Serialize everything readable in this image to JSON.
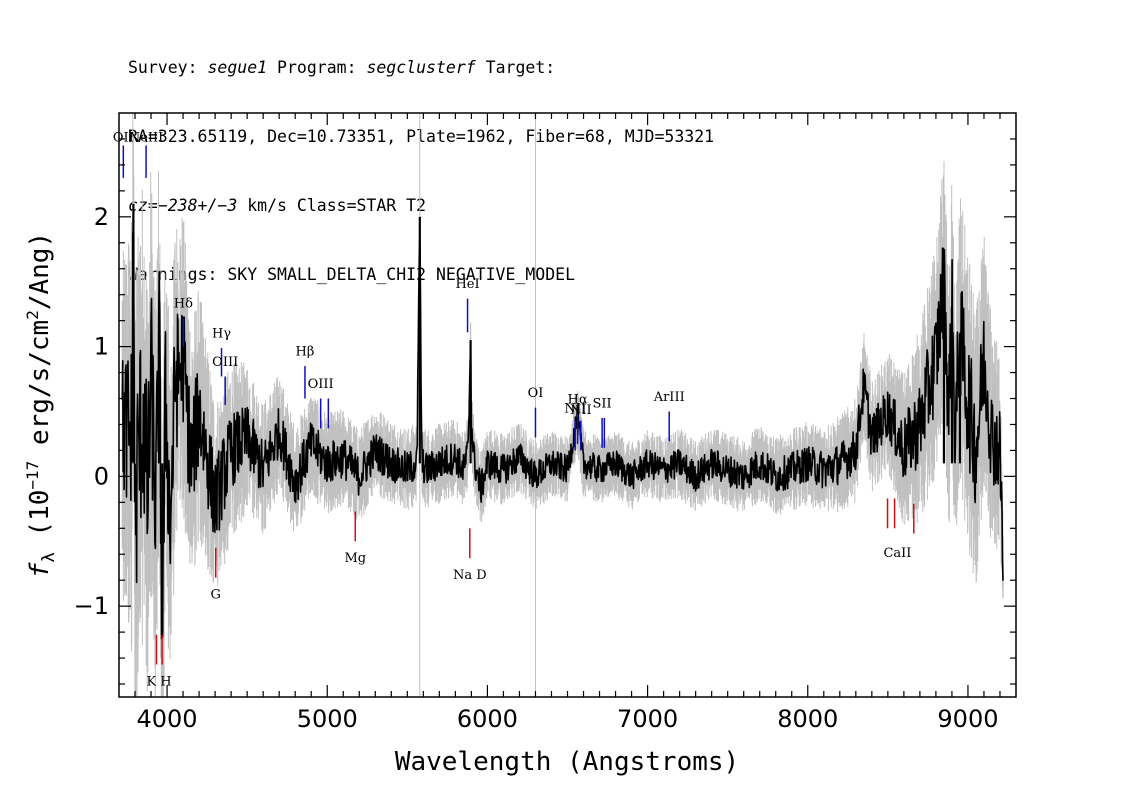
{
  "header": {
    "survey_prefix": "Survey: ",
    "survey": "segue1",
    "program_prefix": " Program: ",
    "program": "segclusterf",
    "target_suffix": " Target:",
    "line2": "RA=323.65119, Dec=10.73351, Plate=1962, Fiber=68, MJD=53321",
    "cz_prefix": "cz=",
    "cz_value": "−238+/−3",
    "cz_suffix": " km/s Class=STAR T2",
    "line4": "Warnings: SKY SMALL_DELTA_CHI2 NEGATIVE_MODEL"
  },
  "chart_data": {
    "type": "line",
    "xlabel": "Wavelength (Angstroms)",
    "ylabel": "f_λ (10^-17 erg/s/cm^2/Ang)",
    "ylabel_parts": {
      "prefix": "f",
      "sub": "λ",
      "open": " (10",
      "exp1": "−17",
      "mid": " erg/s/cm",
      "exp2": "2",
      "end": "/Ang)"
    },
    "xlim": [
      3700,
      9300
    ],
    "ylim": [
      -1.7,
      2.8
    ],
    "x_ticks": [
      4000,
      5000,
      6000,
      7000,
      8000,
      9000
    ],
    "x_tick_labels": [
      "4000",
      "5000",
      "6000",
      "7000",
      "8000",
      "9000"
    ],
    "y_ticks": [
      -1,
      0,
      1,
      2
    ],
    "y_tick_labels": [
      "−1",
      "0",
      "1",
      "2"
    ],
    "series": [
      {
        "role": "flux",
        "color": "#000000",
        "x": [
          3720,
          3780,
          3790,
          3800,
          3820,
          3850,
          3880,
          3900,
          3930,
          3950,
          3970,
          3990,
          4020,
          4050,
          4100,
          4150,
          4200,
          4300,
          4400,
          4500,
          4600,
          4700,
          4800,
          4900,
          5000,
          5100,
          5200,
          5300,
          5400,
          5500,
          5560,
          5578,
          5590,
          5620,
          5700,
          5800,
          5850,
          5880,
          5895,
          5900,
          5920,
          5960,
          6000,
          6100,
          6200,
          6300,
          6400,
          6500,
          6560,
          6600,
          6700,
          6800,
          6900,
          7000,
          7100,
          7200,
          7300,
          7400,
          7500,
          7600,
          7700,
          7800,
          7900,
          8000,
          8100,
          8200,
          8300,
          8350,
          8400,
          8500,
          8600,
          8700,
          8800,
          8850,
          8880,
          8900,
          8920,
          8950,
          9000,
          9050,
          9100,
          9150,
          9200,
          9220
        ],
        "y": [
          0.4,
          0.3,
          2.1,
          -0.5,
          0.2,
          0.5,
          -0.2,
          0.8,
          -0.3,
          1.1,
          -1.2,
          0.6,
          -0.4,
          0.7,
          0.9,
          0.1,
          0.5,
          -0.2,
          0.2,
          0.3,
          0.05,
          0.35,
          -0.05,
          0.25,
          0.1,
          0.15,
          0.0,
          0.2,
          0.1,
          0.05,
          0.1,
          2.0,
          0.1,
          0.05,
          0.1,
          0.15,
          0.05,
          0.2,
          1.05,
          0.4,
          0.1,
          -0.1,
          0.1,
          0.05,
          0.15,
          0.0,
          0.1,
          0.05,
          0.45,
          0.1,
          0.05,
          0.1,
          0.0,
          0.1,
          0.05,
          0.1,
          0.0,
          0.1,
          0.05,
          0.0,
          0.1,
          0.0,
          0.05,
          0.1,
          0.05,
          0.1,
          0.2,
          0.7,
          0.3,
          0.5,
          0.2,
          0.4,
          0.9,
          1.5,
          0.5,
          1.3,
          0.3,
          1.1,
          0.6,
          0.2,
          0.9,
          0.3,
          0.2,
          -0.7
        ]
      },
      {
        "role": "error",
        "color": "#c0c0c0",
        "x": [
          3720,
          3800,
          3900,
          4000,
          4100,
          4200,
          4300,
          4500,
          4700,
          5000,
          5500,
          6000,
          6500,
          7000,
          7500,
          8000,
          8500,
          8800,
          9000,
          9200
        ],
        "y": [
          1.0,
          1.5,
          1.3,
          1.1,
          0.9,
          0.75,
          0.6,
          0.45,
          0.35,
          0.3,
          0.25,
          0.22,
          0.2,
          0.2,
          0.22,
          0.25,
          0.35,
          0.7,
          0.9,
          0.6
        ]
      }
    ],
    "emission_lines": [
      {
        "label": "OII",
        "wave": 3727,
        "y0": 2.3,
        "y1": 2.55
      },
      {
        "label": "NeIII",
        "wave": 3869,
        "y0": 2.3,
        "y1": 2.55
      },
      {
        "label": "Hδ",
        "wave": 4102,
        "y0": 1.0,
        "y1": 1.22
      },
      {
        "label": "Hγ",
        "wave": 4340,
        "y0": 0.77,
        "y1": 0.99
      },
      {
        "label": "OIII",
        "wave": 4363,
        "y0": 0.55,
        "y1": 0.77
      },
      {
        "label": "Hβ",
        "wave": 4861,
        "y0": 0.6,
        "y1": 0.85
      },
      {
        "label": "OIII",
        "wave": 4959,
        "y0": 0.37,
        "y1": 0.6
      },
      {
        "label": "OIII",
        "wave": 5007,
        "y0": 0.37,
        "y1": 0.6
      },
      {
        "label": "HeI",
        "wave": 5876,
        "y0": 1.11,
        "y1": 1.37
      },
      {
        "label": "OI",
        "wave": 6300,
        "y0": 0.3,
        "y1": 0.53
      },
      {
        "label": "NII",
        "wave": 6548,
        "y0": 0.2,
        "y1": 0.43
      },
      {
        "label": "Hα",
        "wave": 6563,
        "y0": 0.25,
        "y1": 0.48
      },
      {
        "label": "NII",
        "wave": 6583,
        "y0": 0.2,
        "y1": 0.43
      },
      {
        "label": "SII",
        "wave": 6716,
        "y0": 0.22,
        "y1": 0.45
      },
      {
        "label": "SII",
        "wave": 6730,
        "y0": 0.22,
        "y1": 0.45
      },
      {
        "label": "ArIII",
        "wave": 7135,
        "y0": 0.27,
        "y1": 0.5
      }
    ],
    "emission_label_positions": [
      {
        "label": "OII",
        "wave": 3727,
        "y": 2.55
      },
      {
        "label": "NeIII",
        "wave": 3869,
        "y": 2.55
      },
      {
        "label": "Hδ",
        "wave": 4102,
        "y": 1.27
      },
      {
        "label": "Hγ",
        "wave": 4340,
        "y": 1.04
      },
      {
        "label": "OIII",
        "wave": 4363,
        "y": 0.82
      },
      {
        "label": "Hβ",
        "wave": 4861,
        "y": 0.9
      },
      {
        "label": "OIII",
        "wave": 4959,
        "y": 0.65
      },
      {
        "label": "HeI",
        "wave": 5876,
        "y": 1.42
      },
      {
        "label": "OI",
        "wave": 6300,
        "y": 0.58
      },
      {
        "label": "NII",
        "wave": 6548,
        "y": 0.46
      },
      {
        "label": "Hα",
        "wave": 6563,
        "y": 0.53
      },
      {
        "label": "SII",
        "wave": 6716,
        "y": 0.5
      },
      {
        "label": "NII",
        "wave": 6583,
        "y": 0.45
      },
      {
        "label": "ArIII",
        "wave": 7135,
        "y": 0.55
      }
    ],
    "absorption_lines": [
      {
        "label": "K",
        "wave": 3934,
        "y0": -1.45,
        "y1": -1.22
      },
      {
        "label": "H",
        "wave": 3969,
        "y0": -1.45,
        "y1": -1.22
      },
      {
        "label": "G",
        "wave": 4304,
        "y0": -0.78,
        "y1": -0.55
      },
      {
        "label": "Mg",
        "wave": 5175,
        "y0": -0.5,
        "y1": -0.27
      },
      {
        "label": "Na",
        "wave": 5890,
        "y0": -0.63,
        "y1": -0.4
      },
      {
        "label": "CaII",
        "wave": 8498,
        "y0": -0.4,
        "y1": -0.17
      },
      {
        "label": "CaII",
        "wave": 8542,
        "y0": -0.4,
        "y1": -0.17
      },
      {
        "label": "CaII",
        "wave": 8662,
        "y0": -0.44,
        "y1": -0.21
      }
    ],
    "absorption_label_positions": [
      {
        "label": "K H",
        "wave": 3950,
        "y": -1.55
      },
      {
        "label": "G",
        "wave": 4304,
        "y": -0.88
      },
      {
        "label": "Mg",
        "wave": 5175,
        "y": -0.6
      },
      {
        "label": "Na  D",
        "wave": 5890,
        "y": -0.73
      },
      {
        "label": "CaII",
        "wave": 8560,
        "y": -0.56
      }
    ],
    "sky_lines": [
      5578,
      6300
    ],
    "colors": {
      "emission": "#1010c0",
      "absorption": "#d01010",
      "flux": "#000000",
      "error": "#c0c0c0",
      "sky": "#c0c0c0"
    }
  }
}
